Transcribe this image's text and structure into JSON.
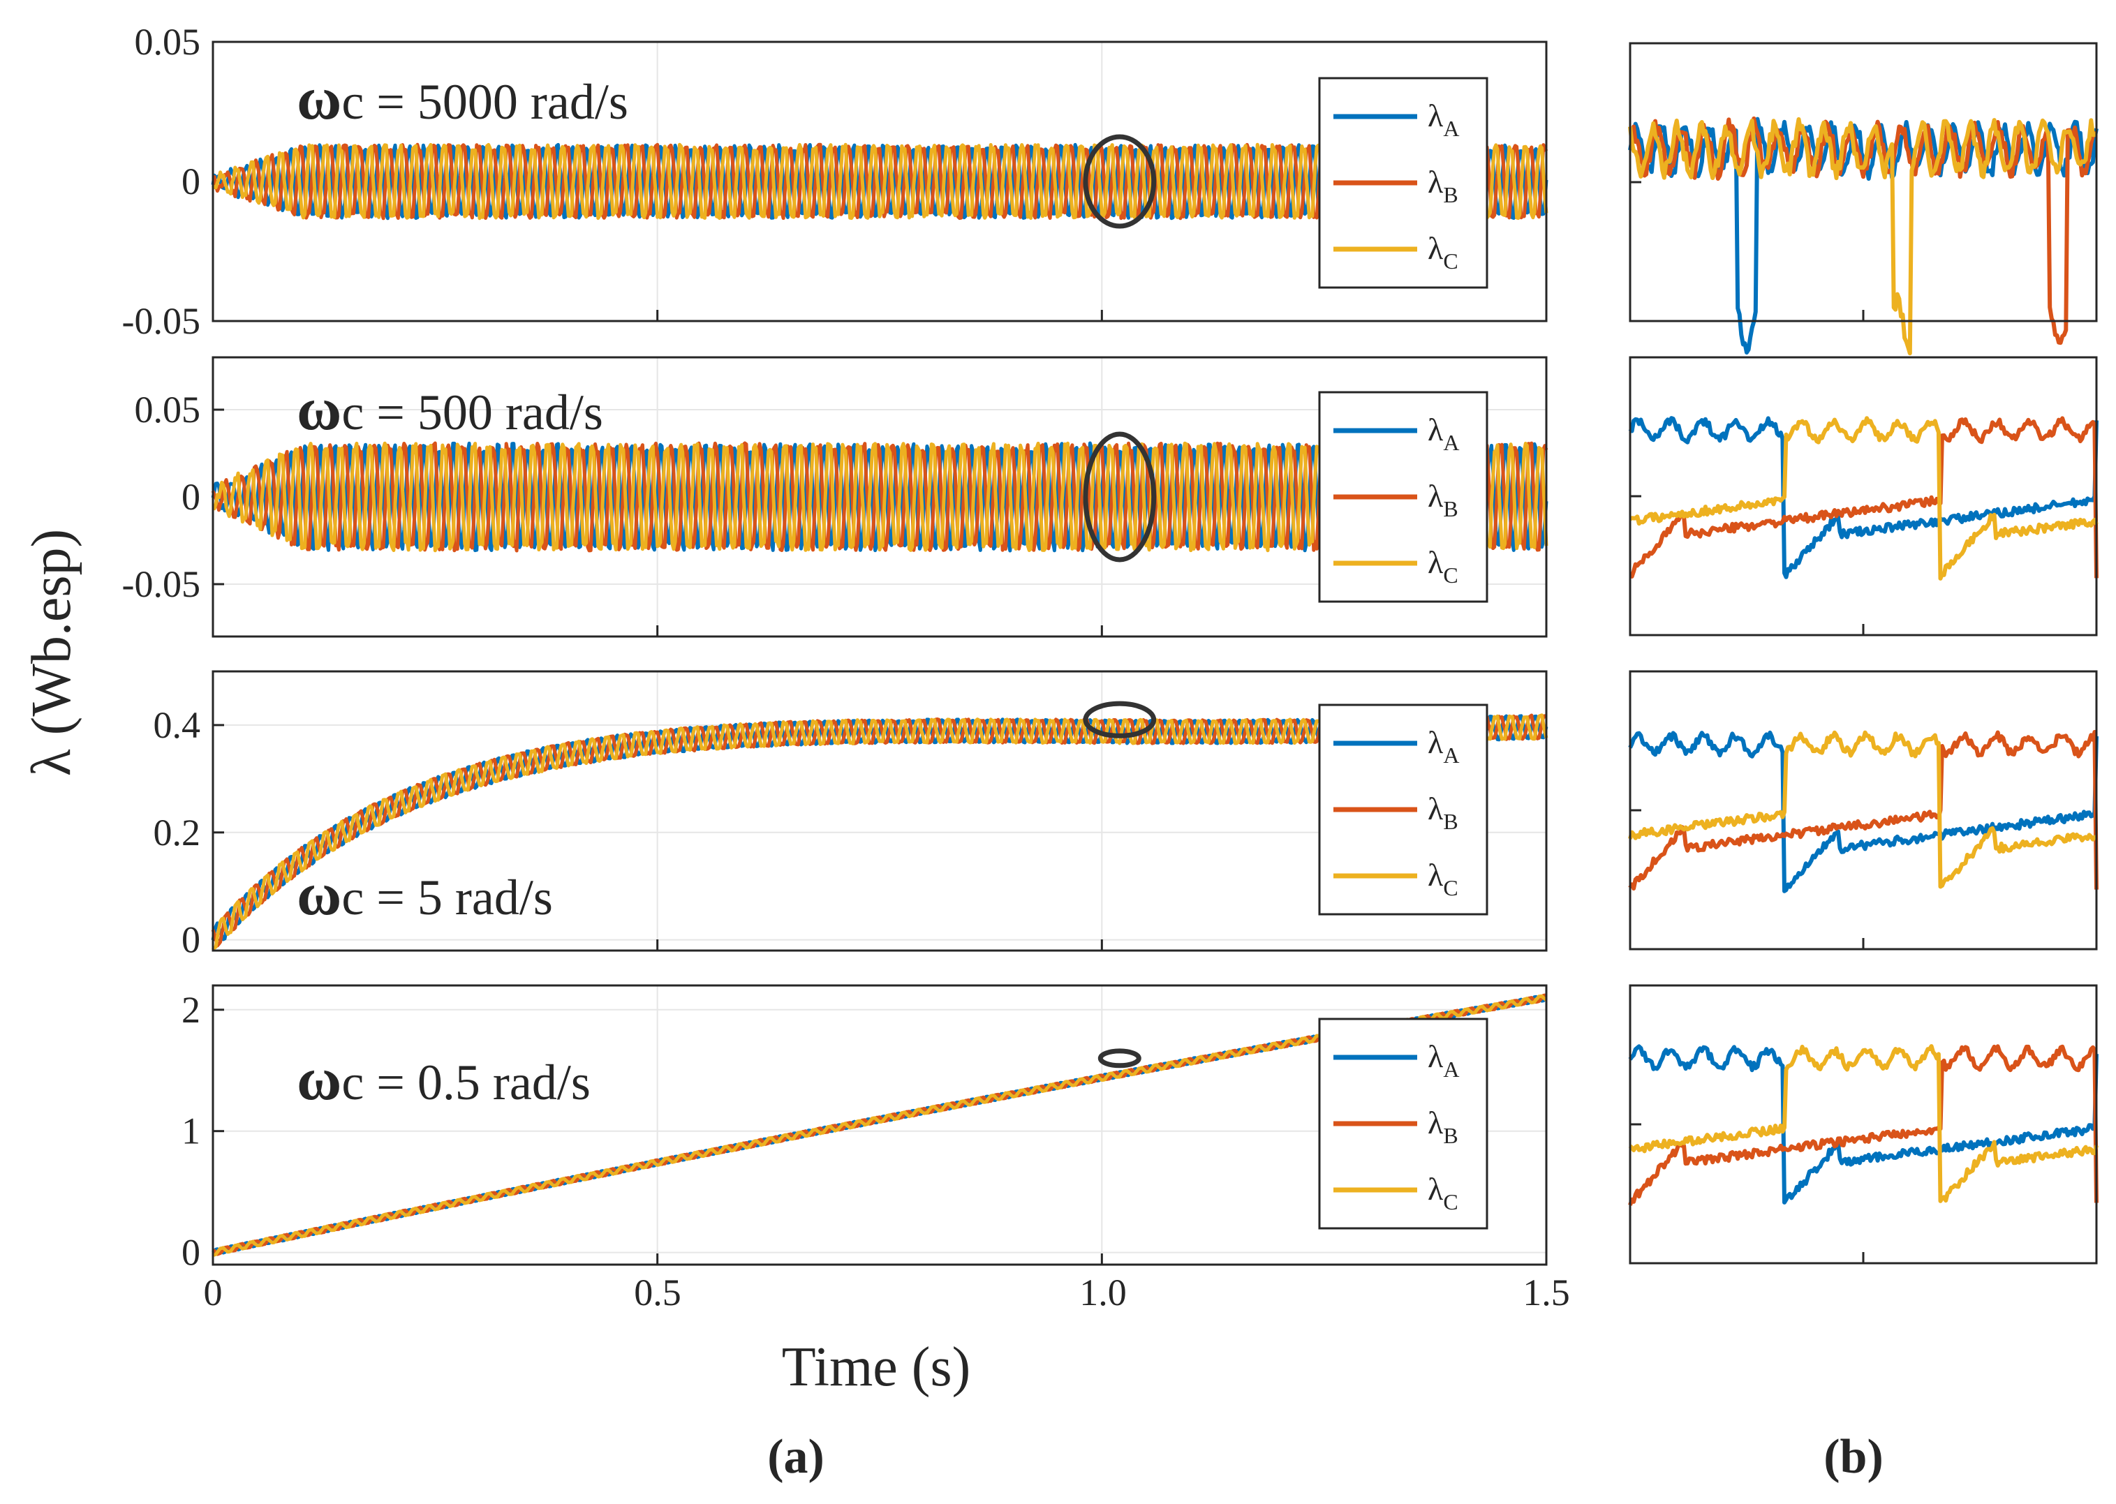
{
  "chart_data": {
    "type": "line",
    "ylabel": "λ (Wb.esp)",
    "xlabel": "Time (s)",
    "colors": {
      "A": "#0072BD",
      "B": "#D95319",
      "C": "#EDB120",
      "grid": "#e6e6e6",
      "axis": "#262626",
      "marker": "#333333"
    },
    "xlim": [
      0,
      1.5
    ],
    "xticks": [
      "0",
      "0.5",
      "1.0",
      "1.5"
    ],
    "xtick_values": [
      0,
      0.5,
      1.0,
      1.5
    ],
    "legend": {
      "entries": [
        {
          "symbol": "λ",
          "sub": "A"
        },
        {
          "symbol": "λ",
          "sub": "B"
        },
        {
          "symbol": "λ",
          "sub": "C"
        }
      ],
      "placement": "right"
    },
    "subfigure_labels": [
      "(a)",
      "(b)"
    ],
    "panels": [
      {
        "omega": "ω",
        "title": "c = 5000 rad/s",
        "ylim": [
          -0.05,
          0.05
        ],
        "yticks": [
          "0.05",
          "0",
          "-0.05"
        ],
        "ytick_values": [
          0.05,
          0,
          -0.05
        ],
        "mean": 0.0,
        "ripple": 0.012,
        "marker_at": {
          "x": 1.02,
          "y": 0.0,
          "rx_data": 0.016,
          "ry_data": 0.016
        },
        "zoom_range": [
          -0.04,
          0.03
        ]
      },
      {
        "omega": "ω",
        "title": "c = 500 rad/s",
        "ylim": [
          -0.08,
          0.08
        ],
        "yticks": [
          "0.05",
          "0",
          "-0.05"
        ],
        "ytick_values": [
          0.05,
          0,
          -0.05
        ],
        "mean": 0.0,
        "ripple": 0.028,
        "marker_at": {
          "x": 1.02,
          "y": 0.0,
          "rx_data": 0.016,
          "ry_data": 0.036
        },
        "zoom_range": [
          -0.06,
          0.065
        ]
      },
      {
        "omega": "ω",
        "title": "c = 5 rad/s",
        "ylim": [
          -0.02,
          0.5
        ],
        "yticks": [
          "0.4",
          "0.2",
          "0"
        ],
        "ytick_values": [
          0.4,
          0.2,
          0
        ],
        "final_value": 0.4,
        "ripple": 0.02,
        "marker_at": {
          "x": 1.02,
          "y": 0.41,
          "rx_data": 0.016,
          "ry_data": 0.03
        },
        "zoom_range": [
          0.37,
          0.45
        ]
      },
      {
        "omega": "ω",
        "title": "c = 0.5 rad/s",
        "ylim": [
          -0.1,
          2.2
        ],
        "yticks": [
          "2",
          "1",
          "0"
        ],
        "ytick_values": [
          2,
          1,
          0
        ],
        "final_value": 2.1,
        "ripple": 0.02,
        "marker_at": {
          "x": 1.02,
          "y": 1.6,
          "rx_data": 0.009,
          "ry_data": 0.06
        },
        "zoom_range": [
          1.55,
          1.66
        ]
      }
    ]
  }
}
